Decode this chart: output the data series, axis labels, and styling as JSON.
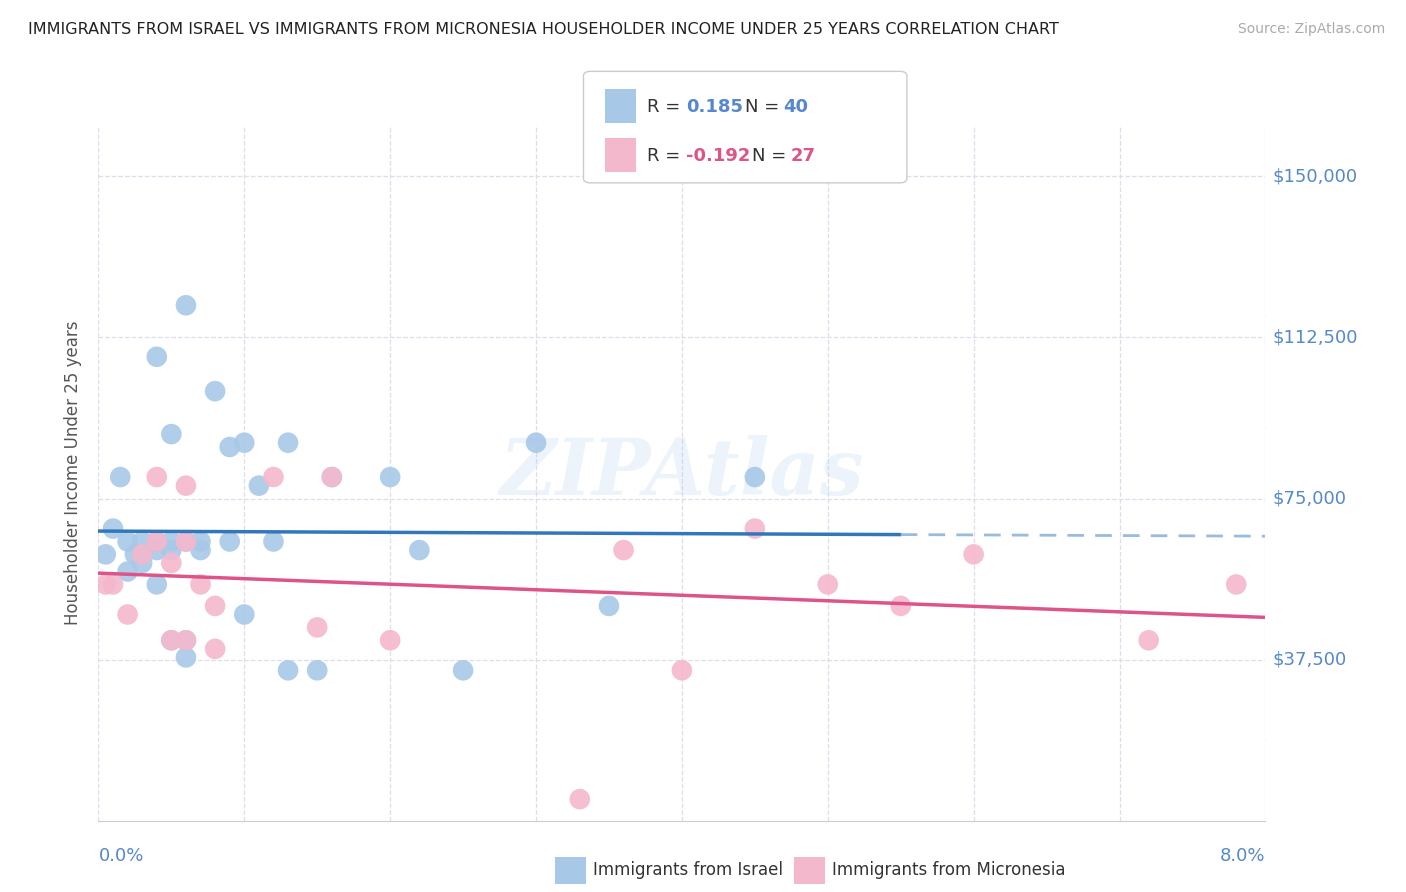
{
  "title": "IMMIGRANTS FROM ISRAEL VS IMMIGRANTS FROM MICRONESIA HOUSEHOLDER INCOME UNDER 25 YEARS CORRELATION CHART",
  "source": "Source: ZipAtlas.com",
  "ylabel": "Householder Income Under 25 years",
  "xlim": [
    0.0,
    0.08
  ],
  "ylim": [
    0,
    162000
  ],
  "yticks": [
    37500,
    75000,
    112500,
    150000
  ],
  "ytick_labels": [
    "$37,500",
    "$75,000",
    "$112,500",
    "$150,000"
  ],
  "background_color": "#ffffff",
  "israel_color": "#a8c8e8",
  "micronesia_color": "#f4b8cc",
  "trend_israel_solid_color": "#3377bb",
  "trend_israel_dash_color": "#99bbdd",
  "trend_micronesia_color": "#dd5588",
  "grid_color": "#ddddee",
  "axis_label_color": "#5588cc",
  "title_color": "#222222",
  "israel_x": [
    0.0005,
    0.001,
    0.0015,
    0.002,
    0.002,
    0.0025,
    0.003,
    0.003,
    0.003,
    0.004,
    0.004,
    0.004,
    0.004,
    0.005,
    0.005,
    0.005,
    0.005,
    0.006,
    0.006,
    0.006,
    0.006,
    0.007,
    0.007,
    0.008,
    0.009,
    0.009,
    0.01,
    0.01,
    0.011,
    0.012,
    0.013,
    0.013,
    0.015,
    0.016,
    0.02,
    0.022,
    0.025,
    0.03,
    0.035,
    0.045
  ],
  "israel_y": [
    62000,
    68000,
    80000,
    58000,
    65000,
    62000,
    62000,
    65000,
    60000,
    108000,
    65000,
    63000,
    55000,
    90000,
    65000,
    63000,
    42000,
    120000,
    65000,
    42000,
    38000,
    65000,
    63000,
    100000,
    87000,
    65000,
    88000,
    48000,
    78000,
    65000,
    88000,
    35000,
    35000,
    80000,
    80000,
    63000,
    35000,
    88000,
    50000,
    80000
  ],
  "micronesia_x": [
    0.0005,
    0.001,
    0.002,
    0.003,
    0.004,
    0.004,
    0.005,
    0.005,
    0.006,
    0.006,
    0.006,
    0.007,
    0.008,
    0.008,
    0.012,
    0.015,
    0.016,
    0.02,
    0.033,
    0.036,
    0.04,
    0.045,
    0.05,
    0.055,
    0.06,
    0.072,
    0.078
  ],
  "micronesia_y": [
    55000,
    55000,
    48000,
    62000,
    80000,
    65000,
    60000,
    42000,
    78000,
    65000,
    42000,
    55000,
    50000,
    40000,
    80000,
    45000,
    80000,
    42000,
    5000,
    63000,
    35000,
    68000,
    55000,
    50000,
    62000,
    42000,
    55000
  ],
  "trend_solid_x_end": 0.055,
  "trend_dash_x_start": 0.055
}
